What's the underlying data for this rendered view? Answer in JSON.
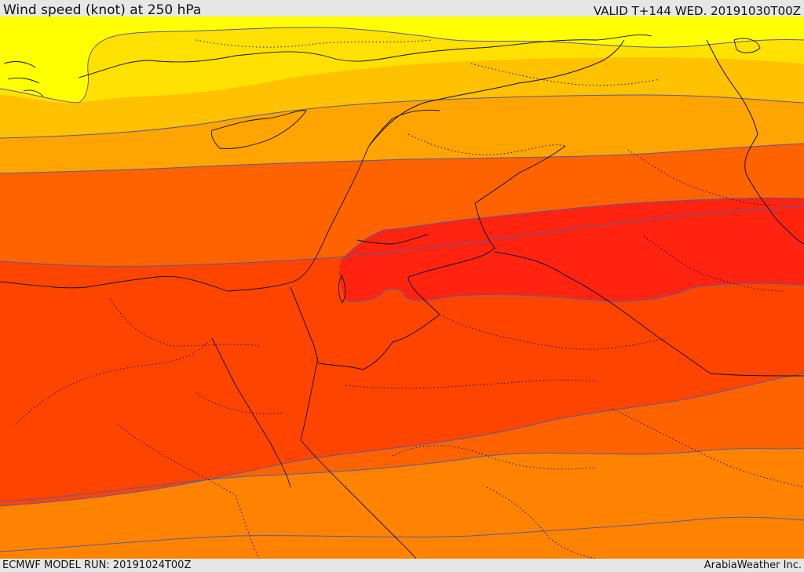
{
  "header": {
    "title": "Wind speed (knot) at 250 hPa",
    "valid_time": "VALID T+144 WED. 20191030T00Z"
  },
  "footer": {
    "model_run": "ECMWF MODEL RUN: 20191024T00Z",
    "provider": "ArabiaWeather Inc."
  },
  "map": {
    "variable": "wind speed",
    "level_hPa": 250,
    "units": "knot",
    "shading_colors": [
      "#ffff00",
      "#ffe100",
      "#ffc100",
      "#ffa400",
      "#ff8300",
      "#ff6300",
      "#ff4400",
      "#ff2310"
    ],
    "contour_color": "#5a5aa0"
  }
}
